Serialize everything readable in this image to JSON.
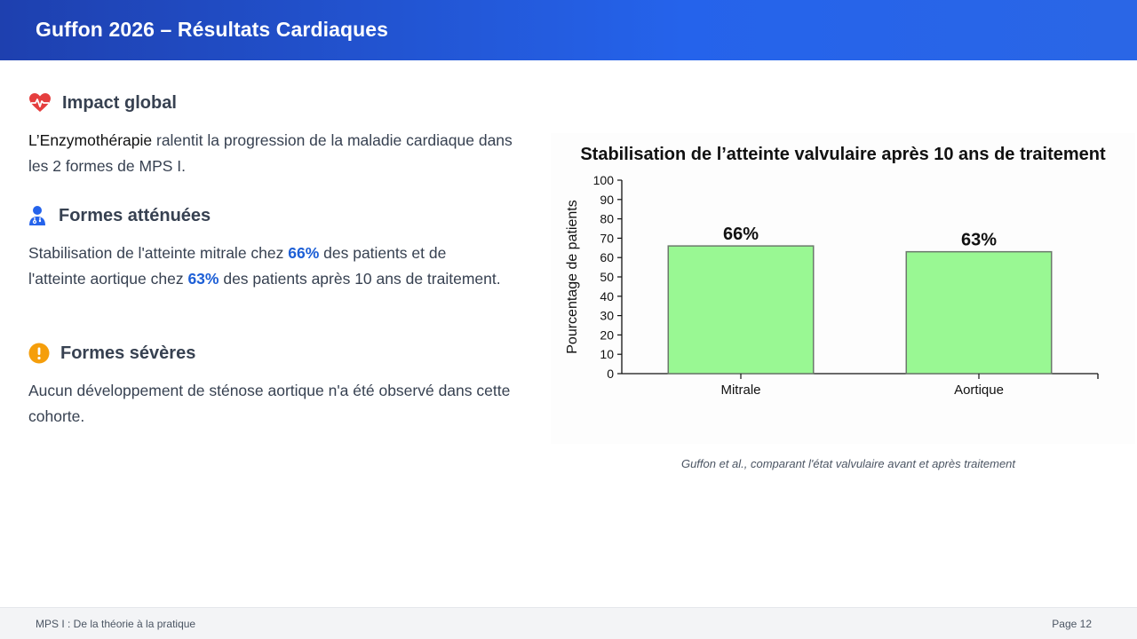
{
  "header": {
    "title": "Guffon 2026 – Résultats Cardiaques"
  },
  "sections": [
    {
      "icon": "heart-pulse-icon",
      "color": "#e53e3e",
      "title": "Impact global",
      "text_dark": "L’Enzymothérapie",
      "text_rest": " ralentit la progression de la maladie cardiaque dans les 2 formes de MPS I."
    },
    {
      "icon": "user-doctor-icon",
      "color": "#2563eb",
      "title": "Formes atténuées",
      "text_a": "Stabilisation de l'atteinte mitrale chez ",
      "hl_a": "66%",
      "text_b": " des patients et de l'atteinte aortique chez ",
      "hl_b": "63%",
      "text_c": " des patients après 10 ans de traitement."
    },
    {
      "icon": "exclamation-circle-icon",
      "color": "#f59e0b",
      "title": "Formes sévères",
      "text": "Aucun développement de sténose aortique n'a été observé dans cette cohorte."
    }
  ],
  "chart_data": {
    "type": "bar",
    "title": "Stabilisation de l’atteinte valvulaire après 10 ans de traitement",
    "xlabel": "",
    "ylabel": "Pourcentage de patients",
    "categories": [
      "Mitrale",
      "Aortique"
    ],
    "values": [
      66,
      63
    ],
    "data_labels": [
      "66%",
      "63%"
    ],
    "ylim": [
      0,
      100
    ],
    "yticks": [
      0,
      10,
      20,
      30,
      40,
      50,
      60,
      70,
      80,
      90,
      100
    ],
    "bar_color": "#99f893",
    "bar_edge": "#6b7a6b",
    "grid": false
  },
  "caption": "Guffon et al., comparant l'état valvulaire avant et après traitement",
  "footer": {
    "left": "MPS I : De la théorie à la pratique",
    "right": "Page 12"
  }
}
